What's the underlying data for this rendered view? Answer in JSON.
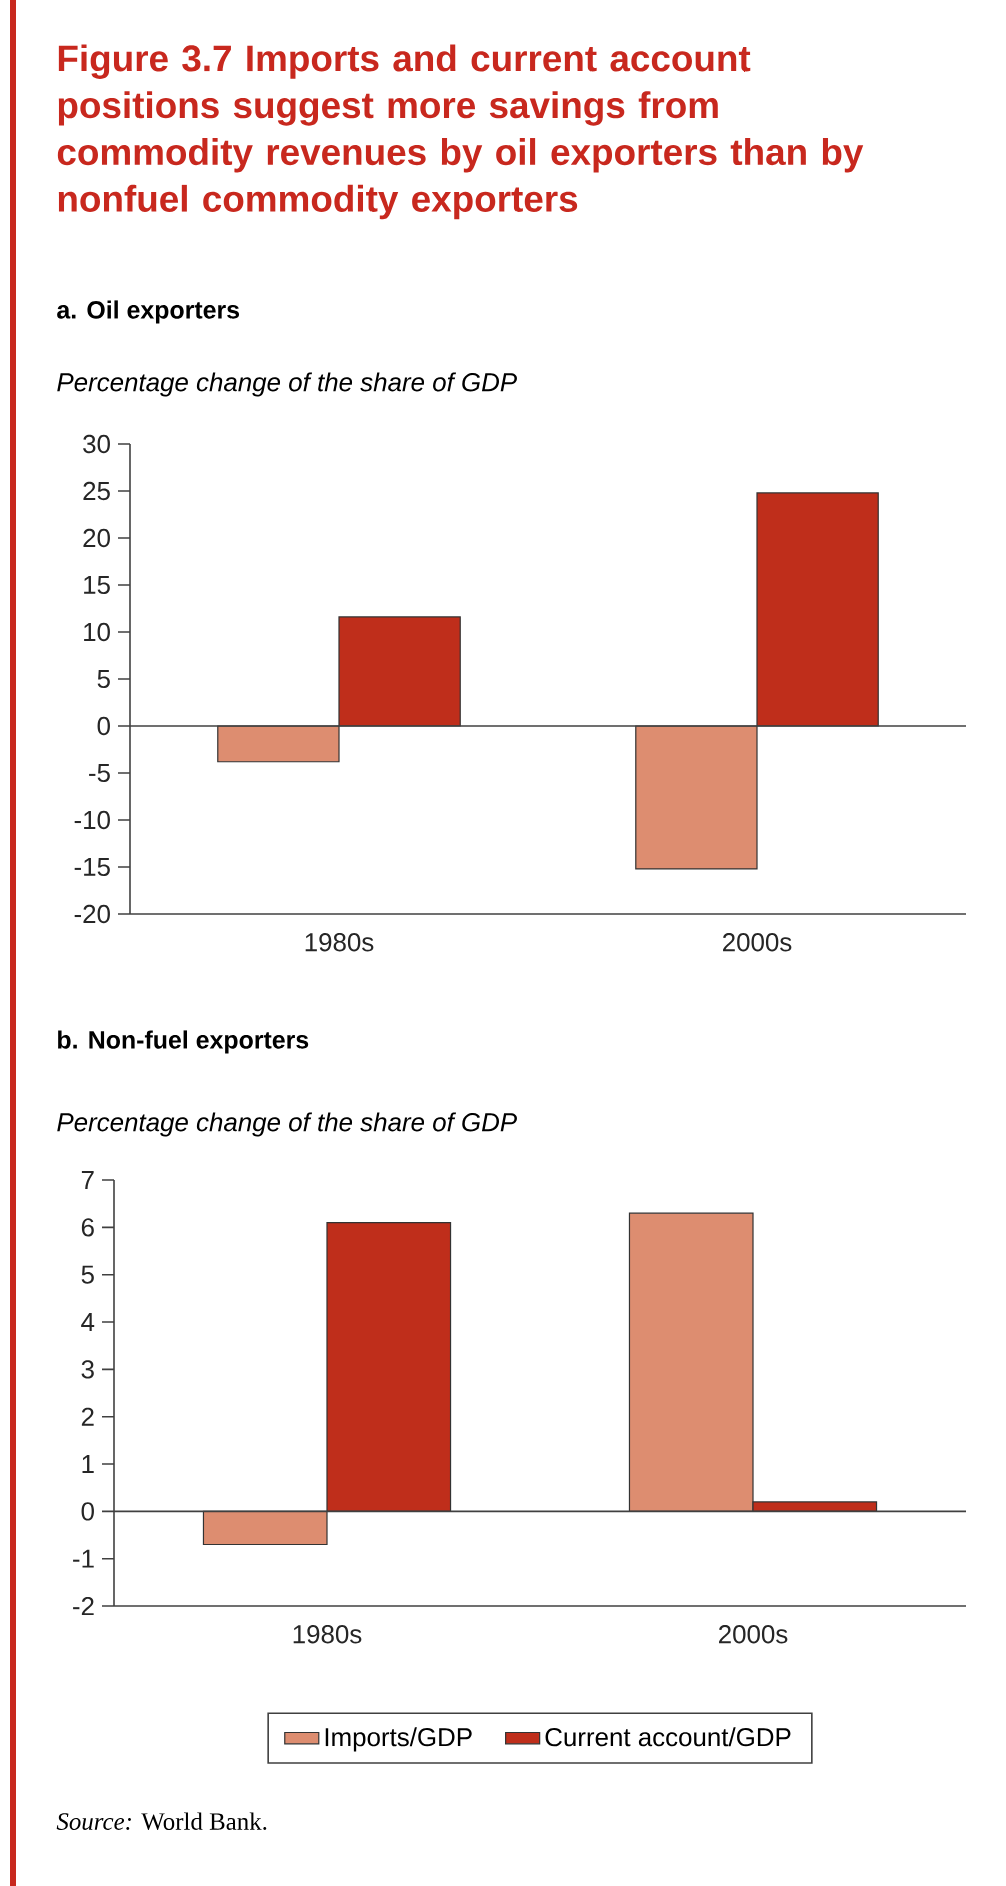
{
  "chart_data": [
    {
      "type": "bar",
      "title": "Figure 3.7  Imports and current account positions suggest more savings from commodity revenues by oil exporters than by nonfuel commodity exporters",
      "subtitle": "a. Oil exporters",
      "ylabel": "Percentage change of the share of GDP",
      "categories": [
        "1980s",
        "2000s"
      ],
      "series": [
        {
          "color": "#dd8d70",
          "values": [
            -3.8,
            -15.2
          ]
        },
        {
          "color": "#bf2e1b",
          "values": [
            11.6,
            24.8
          ]
        }
      ],
      "ylim": [
        -20,
        30
      ],
      "yticks": [
        -20,
        -15,
        -10,
        -5,
        0,
        5,
        10,
        15,
        20,
        25,
        30
      ]
    },
    {
      "type": "bar",
      "title": "b. Non-fuel exporters",
      "ylabel": "Percentage change of the share of GDP",
      "categories": [
        "1980s",
        "2000s"
      ],
      "series": [
        {
          "name": "Imports/GDP",
          "color": "#dd8d70",
          "values": [
            -0.7,
            6.3
          ]
        },
        {
          "name": "Current account/GDP",
          "color": "#bf2e1b",
          "values": [
            6.1,
            0.2
          ]
        }
      ],
      "ylim": [
        -2,
        7
      ],
      "yticks": [
        -2,
        -1,
        0,
        1,
        2,
        3,
        4,
        5,
        6,
        7
      ],
      "legend": "bottom",
      "annotations": [
        "*Source:* World Bank."
      ]
    }
  ]
}
